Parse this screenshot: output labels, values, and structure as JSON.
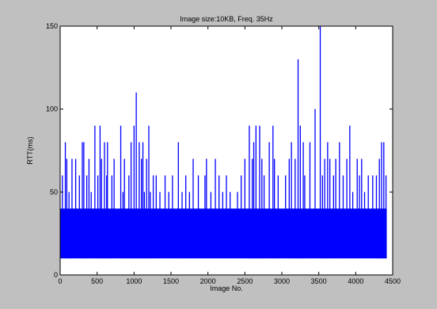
{
  "chart_data": {
    "type": "line",
    "title": "Image size:10KB, Freq. 35Hz",
    "xlabel": "Image No.",
    "ylabel": "RTT(ms)",
    "xlim": [
      0,
      4500
    ],
    "ylim": [
      0,
      150
    ],
    "xticks": [
      0,
      500,
      1000,
      1500,
      2000,
      2500,
      3000,
      3500,
      4000,
      4500
    ],
    "yticks": [
      0,
      50,
      100,
      150
    ],
    "grid": false,
    "legend": "none",
    "colors": {
      "line": "#0000ff",
      "figure_bg": "#c0c0c0",
      "axes_bg": "#ffffff"
    },
    "n_points": 4420,
    "baseline_low": 10,
    "baseline_high": 40,
    "series": [
      {
        "x": [
          30,
          70,
          90,
          120,
          160,
          210,
          260,
          300,
          320,
          360,
          390,
          420,
          470,
          510,
          540,
          560,
          600,
          630,
          640,
          700,
          730,
          820,
          850,
          870,
          930,
          960,
          1000,
          1030,
          1070,
          1100,
          1120,
          1140,
          1170,
          1200,
          1220,
          1260,
          1300,
          1350,
          1420,
          1470,
          1520,
          1600,
          1650,
          1700,
          1750,
          1800,
          1870,
          1960,
          1980,
          2040,
          2100,
          2150,
          2200,
          2250,
          2300,
          2400,
          2450,
          2500,
          2560,
          2600,
          2620,
          2650,
          2700,
          2730,
          2760,
          2830,
          2880,
          2900,
          2950,
          3050,
          3100,
          3130,
          3180,
          3220,
          3250,
          3290,
          3310,
          3380,
          3450,
          3520,
          3550,
          3580,
          3620,
          3650,
          3700,
          3730,
          3780,
          3830,
          3880,
          3920,
          3960,
          4020,
          4050,
          4080,
          4120,
          4170,
          4230,
          4280,
          4320,
          4350,
          4380,
          4410
        ],
        "y": [
          60,
          80,
          70,
          50,
          70,
          70,
          60,
          80,
          80,
          60,
          70,
          50,
          90,
          60,
          90,
          70,
          80,
          60,
          80,
          60,
          70,
          90,
          50,
          70,
          60,
          80,
          90,
          110,
          80,
          70,
          80,
          50,
          70,
          90,
          50,
          60,
          60,
          50,
          60,
          50,
          60,
          80,
          50,
          60,
          50,
          70,
          60,
          60,
          70,
          50,
          70,
          60,
          50,
          60,
          50,
          50,
          60,
          70,
          90,
          70,
          80,
          90,
          90,
          70,
          60,
          80,
          90,
          70,
          60,
          60,
          70,
          80,
          70,
          130,
          90,
          80,
          60,
          80,
          100,
          150,
          60,
          70,
          80,
          70,
          60,
          70,
          80,
          60,
          70,
          90,
          50,
          70,
          60,
          70,
          50,
          60,
          60,
          60,
          70,
          80,
          80,
          60
        ]
      }
    ]
  }
}
